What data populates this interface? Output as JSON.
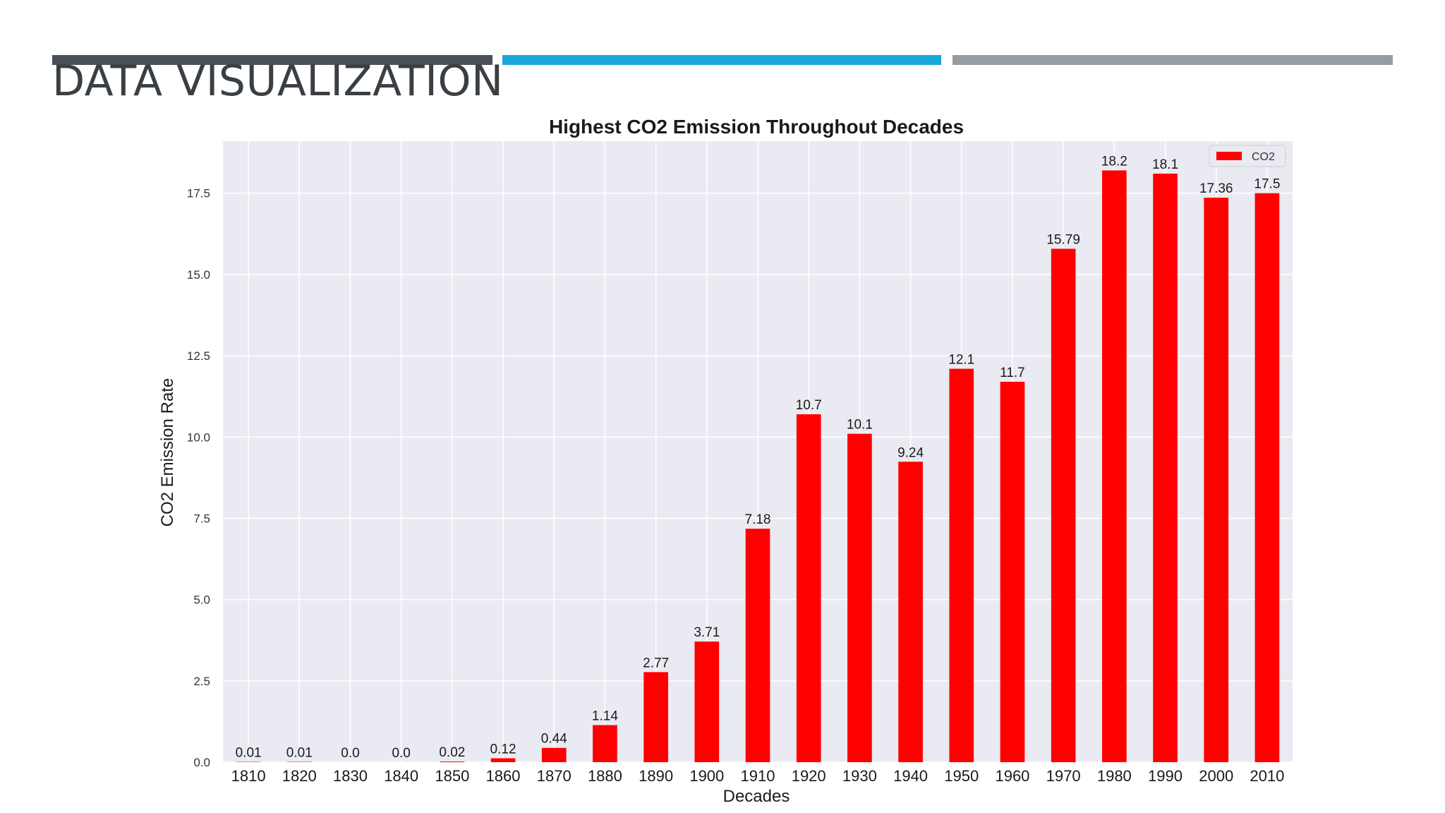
{
  "slide": {
    "title": "DATA VISUALIZATION",
    "accent_colors": [
      "#4a5055",
      "#1aa7dc",
      "#969da1"
    ]
  },
  "chart_data": {
    "type": "bar",
    "title": "Highest CO2 Emission Throughout Decades",
    "xlabel": "Decades",
    "ylabel": "CO2 Emission Rate",
    "categories": [
      "1810",
      "1820",
      "1830",
      "1840",
      "1850",
      "1860",
      "1870",
      "1880",
      "1890",
      "1900",
      "1910",
      "1920",
      "1930",
      "1940",
      "1950",
      "1960",
      "1970",
      "1980",
      "1990",
      "2000",
      "2010"
    ],
    "series": [
      {
        "name": "CO2",
        "color": "#ff0000",
        "values": [
          0.01,
          0.01,
          0.0,
          0.0,
          0.02,
          0.12,
          0.44,
          1.14,
          2.77,
          3.71,
          7.18,
          10.7,
          10.1,
          9.24,
          12.1,
          11.7,
          15.79,
          18.2,
          18.1,
          17.36,
          17.5
        ],
        "labels": [
          "0.01",
          "0.01",
          "0.0",
          "0.0",
          "0.02",
          "0.12",
          "0.44",
          "1.14",
          "2.77",
          "3.71",
          "7.18",
          "10.7",
          "10.1",
          "9.24",
          "12.1",
          "11.7",
          "15.79",
          "18.2",
          "18.1",
          "17.36",
          "17.5"
        ]
      }
    ],
    "yticks": [
      "0.0",
      "2.5",
      "5.0",
      "7.5",
      "10.0",
      "12.5",
      "15.0",
      "17.5"
    ],
    "ylim": [
      0,
      19.1
    ],
    "grid": true,
    "legend": "top-right",
    "background": "#eaeaf2"
  }
}
